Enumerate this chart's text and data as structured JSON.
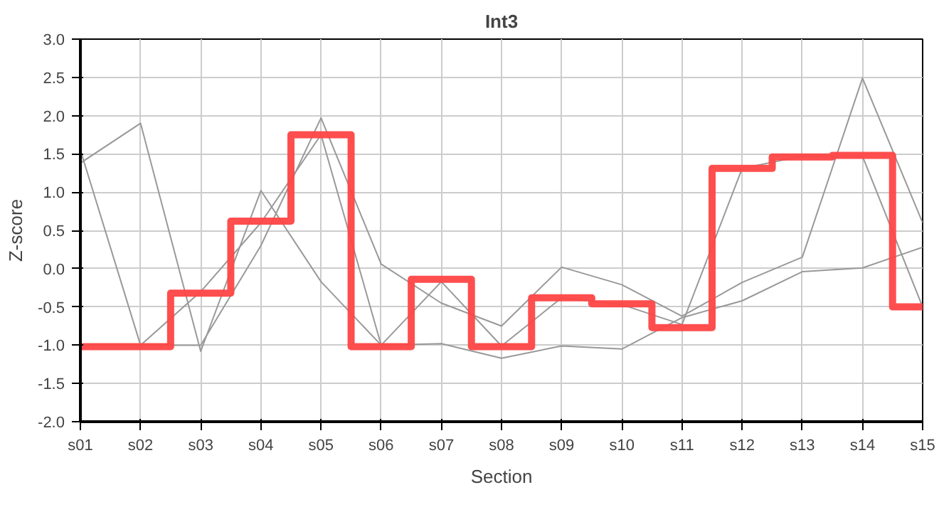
{
  "chart_data": {
    "type": "line",
    "title": "Int3",
    "xlabel": "Section",
    "ylabel": "Z-score",
    "categories": [
      "s01",
      "s02",
      "s03",
      "s04",
      "s05",
      "s06",
      "s07",
      "s08",
      "s09",
      "s10",
      "s11",
      "s12",
      "s13",
      "s14",
      "s15"
    ],
    "series": [
      {
        "color": "#999999",
        "values": [
          1.55,
          -1.0,
          -1.0,
          0.3,
          1.97,
          0.06,
          -0.45,
          -0.75,
          0.02,
          -0.21,
          -0.62,
          -0.18,
          0.15,
          2.49,
          0.6
        ]
      },
      {
        "color": "#999999",
        "values": [
          1.38,
          1.9,
          -1.08,
          1.02,
          -0.17,
          -1.0,
          -0.17,
          -1.01,
          -0.38,
          -0.47,
          -0.73,
          1.31,
          1.47,
          1.47,
          -0.5
        ]
      },
      {
        "color": "#999999",
        "values": [
          -1.0,
          -1.0,
          -0.3,
          0.6,
          1.75,
          -1.0,
          -0.98,
          -1.17,
          -1.01,
          -1.05,
          -0.64,
          -0.42,
          -0.04,
          0.01,
          0.28
        ]
      },
      {
        "type": "step",
        "color": "#ff4444",
        "values": [
          -1.02,
          -1.02,
          -0.32,
          0.62,
          1.75,
          -1.02,
          -0.14,
          -1.02,
          -0.38,
          -0.46,
          -0.77,
          1.31,
          1.46,
          1.48,
          -0.5
        ]
      }
    ],
    "ylim": [
      -2,
      3
    ],
    "yticks": [
      {
        "value": -2,
        "label": "-2.0"
      },
      {
        "value": -1.5,
        "label": "-1.5"
      },
      {
        "value": -1,
        "label": "-1.0"
      },
      {
        "value": -0.5,
        "label": "-0.5"
      },
      {
        "value": 0,
        "label": "0.0"
      },
      {
        "value": 0.5,
        "label": "0.5"
      },
      {
        "value": 1,
        "label": "1.0"
      },
      {
        "value": 1.5,
        "label": "1.5"
      },
      {
        "value": 2,
        "label": "2.0"
      },
      {
        "value": 2.5,
        "label": "2.5"
      },
      {
        "value": 3,
        "label": "3.0"
      }
    ],
    "grid": true
  }
}
